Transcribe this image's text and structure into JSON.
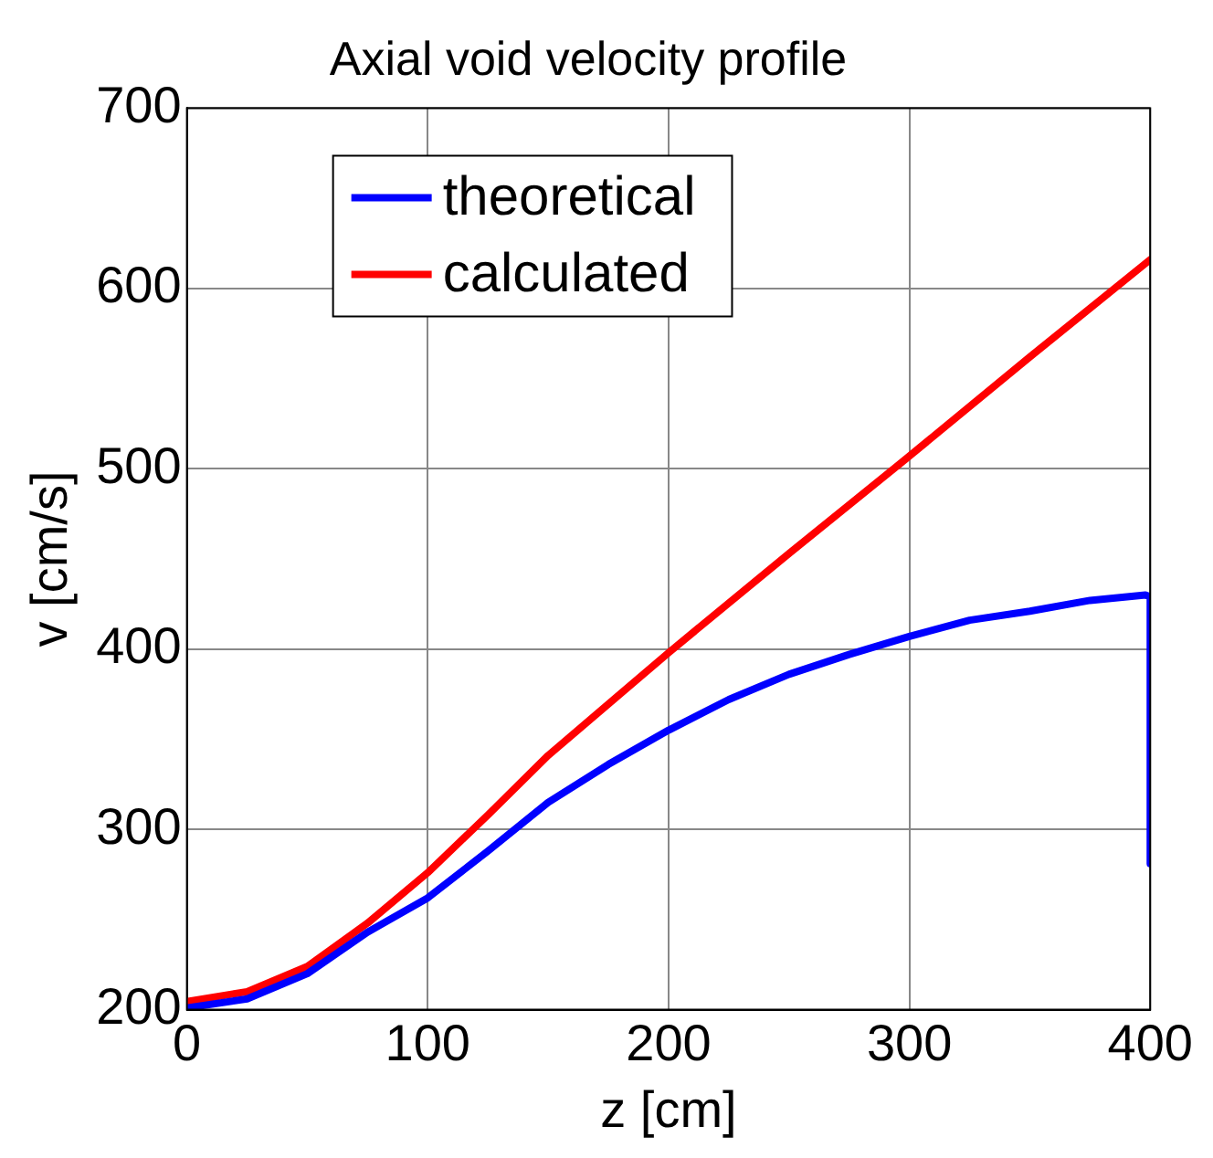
{
  "chart_data": {
    "type": "line",
    "title": "Axial void velocity profile",
    "xlabel": "z [cm]",
    "ylabel": "v [cm/s]",
    "xlim": [
      0,
      400
    ],
    "xticks": [
      0,
      100,
      200,
      300,
      400
    ],
    "ylim": [
      200,
      700
    ],
    "yticks": [
      200,
      300,
      400,
      500,
      600,
      700
    ],
    "grid": true,
    "legend": "top left",
    "line_style": "solid",
    "marker": "none",
    "series": [
      {
        "name": "theoretical",
        "color": "#0000ff",
        "x": [
          0,
          25,
          50,
          75,
          100,
          125,
          150,
          175,
          200,
          225,
          250,
          275,
          300,
          325,
          350,
          375,
          398,
          400,
          400
        ],
        "values": [
          201,
          206,
          220,
          243,
          262,
          288,
          315,
          336,
          355,
          372,
          386,
          397,
          407,
          416,
          421,
          427,
          430,
          429,
          281
        ]
      },
      {
        "name": "calculated",
        "color": "#ff0000",
        "x": [
          0,
          25,
          50,
          75,
          100,
          125,
          150,
          200,
          250,
          300,
          350,
          400
        ],
        "values": [
          204.5,
          210,
          224,
          248,
          276,
          308,
          341,
          398,
          453,
          507,
          562,
          616
        ]
      }
    ]
  }
}
